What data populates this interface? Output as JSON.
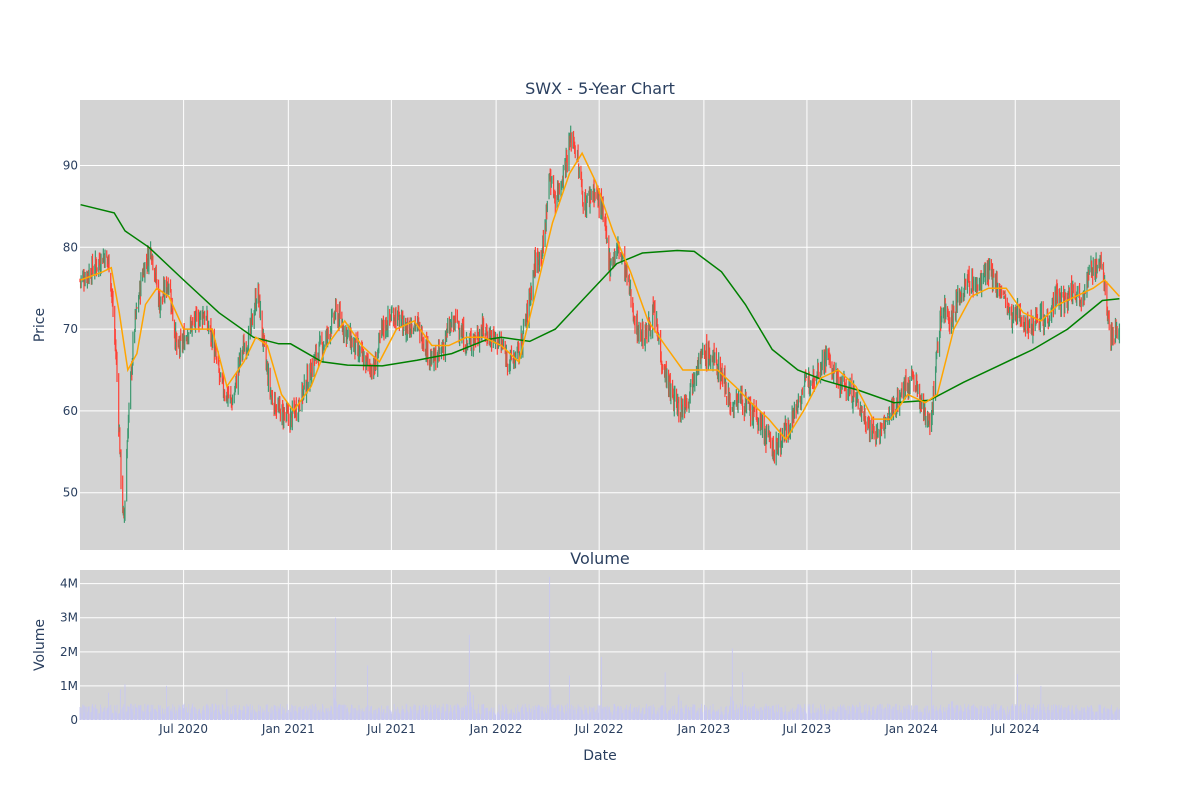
{
  "chart_data": [
    {
      "type": "candlestick",
      "title": "SWX - 5-Year Chart",
      "ylabel": "Price",
      "xlabel": "",
      "ylim": [
        43,
        98
      ],
      "x_range": [
        "2020-01-01",
        "2025-01-01"
      ],
      "yticks": [
        50,
        60,
        70,
        80,
        90
      ],
      "xticks": [
        {
          "date": "2020-07-01",
          "label": "Jul 2020"
        },
        {
          "date": "2021-01-01",
          "label": "Jan 2021"
        },
        {
          "date": "2021-07-01",
          "label": "Jul 2021"
        },
        {
          "date": "2022-01-01",
          "label": "Jan 2022"
        },
        {
          "date": "2022-07-01",
          "label": "Jul 2022"
        },
        {
          "date": "2023-01-01",
          "label": "Jan 2023"
        },
        {
          "date": "2023-07-01",
          "label": "Jul 2023"
        },
        {
          "date": "2024-01-01",
          "label": "Jan 2024"
        },
        {
          "date": "2024-07-01",
          "label": "Jul 2024"
        }
      ],
      "grid": true,
      "background": "#d3d3d3",
      "up_color": "#3d9970",
      "down_color": "#ff4136",
      "close_path": [
        [
          "2020-01-02",
          76
        ],
        [
          "2020-01-25",
          77.5
        ],
        [
          "2020-02-12",
          79
        ],
        [
          "2020-02-22",
          78
        ],
        [
          "2020-03-05",
          66
        ],
        [
          "2020-03-13",
          52
        ],
        [
          "2020-03-18",
          46
        ],
        [
          "2020-03-25",
          58
        ],
        [
          "2020-04-05",
          70
        ],
        [
          "2020-04-20",
          77
        ],
        [
          "2020-05-05",
          80
        ],
        [
          "2020-05-20",
          73
        ],
        [
          "2020-06-05",
          76
        ],
        [
          "2020-06-20",
          67
        ],
        [
          "2020-07-10",
          70
        ],
        [
          "2020-08-05",
          72
        ],
        [
          "2020-08-20",
          69
        ],
        [
          "2020-09-05",
          63
        ],
        [
          "2020-09-25",
          61
        ],
        [
          "2020-10-10",
          67
        ],
        [
          "2020-10-25",
          69
        ],
        [
          "2020-11-08",
          75
        ],
        [
          "2020-11-20",
          67
        ],
        [
          "2020-12-01",
          62
        ],
        [
          "2020-12-15",
          60
        ],
        [
          "2021-01-05",
          59
        ],
        [
          "2021-01-20",
          61
        ],
        [
          "2021-02-05",
          64
        ],
        [
          "2021-02-20",
          67
        ],
        [
          "2021-03-10",
          69
        ],
        [
          "2021-03-25",
          72
        ],
        [
          "2021-04-10",
          70
        ],
        [
          "2021-04-25",
          68
        ],
        [
          "2021-05-15",
          66
        ],
        [
          "2021-06-01",
          65
        ],
        [
          "2021-06-15",
          70
        ],
        [
          "2021-07-05",
          72
        ],
        [
          "2021-07-25",
          70
        ],
        [
          "2021-08-10",
          71
        ],
        [
          "2021-08-25",
          69
        ],
        [
          "2021-09-10",
          66
        ],
        [
          "2021-09-25",
          67
        ],
        [
          "2021-10-10",
          70
        ],
        [
          "2021-10-25",
          71
        ],
        [
          "2021-11-10",
          68
        ],
        [
          "2021-11-25",
          69
        ],
        [
          "2021-12-10",
          70
        ],
        [
          "2021-12-25",
          69
        ],
        [
          "2022-01-10",
          68
        ],
        [
          "2022-01-25",
          66
        ],
        [
          "2022-02-10",
          67
        ],
        [
          "2022-02-25",
          72
        ],
        [
          "2022-03-10",
          78
        ],
        [
          "2022-03-25",
          80
        ],
        [
          "2022-04-05",
          89
        ],
        [
          "2022-04-15",
          86
        ],
        [
          "2022-04-25",
          88
        ],
        [
          "2022-05-05",
          91
        ],
        [
          "2022-05-15",
          94
        ],
        [
          "2022-05-25",
          90
        ],
        [
          "2022-06-05",
          85
        ],
        [
          "2022-06-20",
          87
        ],
        [
          "2022-07-05",
          85
        ],
        [
          "2022-07-20",
          78
        ],
        [
          "2022-08-05",
          80
        ],
        [
          "2022-08-20",
          76
        ],
        [
          "2022-09-05",
          70
        ],
        [
          "2022-09-20",
          69
        ],
        [
          "2022-10-05",
          72
        ],
        [
          "2022-10-20",
          66
        ],
        [
          "2022-11-05",
          62
        ],
        [
          "2022-11-20",
          60
        ],
        [
          "2022-12-05",
          62
        ],
        [
          "2022-12-20",
          66
        ],
        [
          "2023-01-05",
          67
        ],
        [
          "2023-01-20",
          66
        ],
        [
          "2023-02-05",
          64
        ],
        [
          "2023-02-20",
          60
        ],
        [
          "2023-03-05",
          62
        ],
        [
          "2023-03-20",
          60
        ],
        [
          "2023-04-05",
          59
        ],
        [
          "2023-04-20",
          57
        ],
        [
          "2023-05-05",
          55
        ],
        [
          "2023-05-20",
          57
        ],
        [
          "2023-06-05",
          59
        ],
        [
          "2023-06-20",
          62
        ],
        [
          "2023-07-05",
          64
        ],
        [
          "2023-07-20",
          65
        ],
        [
          "2023-08-05",
          67
        ],
        [
          "2023-08-20",
          64
        ],
        [
          "2023-09-05",
          63
        ],
        [
          "2023-09-20",
          62
        ],
        [
          "2023-10-05",
          60
        ],
        [
          "2023-10-20",
          58
        ],
        [
          "2023-11-05",
          57
        ],
        [
          "2023-11-20",
          59
        ],
        [
          "2023-12-05",
          61
        ],
        [
          "2023-12-20",
          63
        ],
        [
          "2024-01-05",
          64
        ],
        [
          "2024-01-20",
          60
        ],
        [
          "2024-02-05",
          59
        ],
        [
          "2024-02-15",
          68
        ],
        [
          "2024-02-25",
          73
        ],
        [
          "2024-03-10",
          71
        ],
        [
          "2024-03-25",
          74
        ],
        [
          "2024-04-10",
          76
        ],
        [
          "2024-04-25",
          75
        ],
        [
          "2024-05-10",
          77
        ],
        [
          "2024-05-25",
          76
        ],
        [
          "2024-06-10",
          74
        ],
        [
          "2024-06-25",
          71
        ],
        [
          "2024-07-10",
          72
        ],
        [
          "2024-07-25",
          70
        ],
        [
          "2024-08-10",
          72
        ],
        [
          "2024-08-25",
          71
        ],
        [
          "2024-09-10",
          74
        ],
        [
          "2024-09-25",
          73
        ],
        [
          "2024-10-10",
          75
        ],
        [
          "2024-10-25",
          74
        ],
        [
          "2024-11-10",
          77
        ],
        [
          "2024-11-25",
          78
        ],
        [
          "2024-12-05",
          76
        ],
        [
          "2024-12-15",
          69
        ],
        [
          "2024-12-31",
          70
        ]
      ],
      "sma_short": {
        "color": "#ffa500",
        "points": [
          [
            "2020-01-02",
            76
          ],
          [
            "2020-02-10",
            77
          ],
          [
            "2020-02-25",
            77.5
          ],
          [
            "2020-03-10",
            72
          ],
          [
            "2020-03-25",
            65
          ],
          [
            "2020-04-10",
            67
          ],
          [
            "2020-04-25",
            73
          ],
          [
            "2020-05-15",
            75
          ],
          [
            "2020-06-05",
            74
          ],
          [
            "2020-07-01",
            70
          ],
          [
            "2020-08-01",
            70
          ],
          [
            "2020-08-20",
            70
          ],
          [
            "2020-09-15",
            63
          ],
          [
            "2020-10-15",
            66
          ],
          [
            "2020-11-05",
            69
          ],
          [
            "2020-11-25",
            68
          ],
          [
            "2020-12-20",
            62
          ],
          [
            "2021-01-10",
            60
          ],
          [
            "2021-02-10",
            63
          ],
          [
            "2021-03-10",
            68
          ],
          [
            "2021-04-10",
            71
          ],
          [
            "2021-05-10",
            68
          ],
          [
            "2021-06-10",
            66
          ],
          [
            "2021-07-10",
            70
          ],
          [
            "2021-08-10",
            71
          ],
          [
            "2021-09-10",
            68
          ],
          [
            "2021-10-10",
            68
          ],
          [
            "2021-11-10",
            69
          ],
          [
            "2021-12-10",
            69
          ],
          [
            "2022-01-10",
            68
          ],
          [
            "2022-02-10",
            66
          ],
          [
            "2022-03-10",
            74
          ],
          [
            "2022-04-10",
            83
          ],
          [
            "2022-05-10",
            89
          ],
          [
            "2022-06-01",
            91.5
          ],
          [
            "2022-06-25",
            88
          ],
          [
            "2022-07-25",
            82
          ],
          [
            "2022-08-25",
            77
          ],
          [
            "2022-09-25",
            71
          ],
          [
            "2022-10-25",
            68
          ],
          [
            "2022-11-25",
            65
          ],
          [
            "2022-12-25",
            65
          ],
          [
            "2023-01-25",
            65
          ],
          [
            "2023-02-25",
            63
          ],
          [
            "2023-03-25",
            61
          ],
          [
            "2023-04-25",
            59
          ],
          [
            "2023-05-25",
            56.5
          ],
          [
            "2023-06-25",
            60
          ],
          [
            "2023-07-25",
            64
          ],
          [
            "2023-08-25",
            65
          ],
          [
            "2023-09-25",
            63
          ],
          [
            "2023-10-25",
            59
          ],
          [
            "2023-11-25",
            59
          ],
          [
            "2023-12-25",
            62
          ],
          [
            "2024-01-25",
            61
          ],
          [
            "2024-02-15",
            62
          ],
          [
            "2024-03-15",
            70
          ],
          [
            "2024-04-15",
            74
          ],
          [
            "2024-05-15",
            75
          ],
          [
            "2024-06-15",
            75
          ],
          [
            "2024-07-15",
            72
          ],
          [
            "2024-08-15",
            71
          ],
          [
            "2024-09-15",
            73
          ],
          [
            "2024-10-15",
            74
          ],
          [
            "2024-11-15",
            75
          ],
          [
            "2024-12-05",
            76
          ],
          [
            "2024-12-31",
            74
          ]
        ]
      },
      "sma_long": {
        "color": "#008000",
        "points": [
          [
            "2020-01-02",
            85.2
          ],
          [
            "2020-03-01",
            84.2
          ],
          [
            "2020-03-20",
            82
          ],
          [
            "2020-05-01",
            80
          ],
          [
            "2020-07-01",
            76
          ],
          [
            "2020-09-01",
            72
          ],
          [
            "2020-11-01",
            69
          ],
          [
            "2020-12-15",
            68.2
          ],
          [
            "2021-01-05",
            68.2
          ],
          [
            "2021-03-01",
            66
          ],
          [
            "2021-04-15",
            65.6
          ],
          [
            "2021-06-15",
            65.5
          ],
          [
            "2021-08-15",
            66.2
          ],
          [
            "2021-10-15",
            67
          ],
          [
            "2021-12-15",
            68.7
          ],
          [
            "2022-01-10",
            69
          ],
          [
            "2022-03-01",
            68.5
          ],
          [
            "2022-04-15",
            70
          ],
          [
            "2022-06-01",
            73.5
          ],
          [
            "2022-08-01",
            78
          ],
          [
            "2022-09-15",
            79.3
          ],
          [
            "2022-11-15",
            79.6
          ],
          [
            "2022-12-15",
            79.5
          ],
          [
            "2023-02-01",
            77
          ],
          [
            "2023-03-15",
            73
          ],
          [
            "2023-05-01",
            67.5
          ],
          [
            "2023-06-15",
            65
          ],
          [
            "2023-08-01",
            63.7
          ],
          [
            "2023-10-01",
            62.5
          ],
          [
            "2023-12-01",
            61
          ],
          [
            "2024-02-01",
            61.3
          ],
          [
            "2024-04-01",
            63.5
          ],
          [
            "2024-06-01",
            65.5
          ],
          [
            "2024-08-01",
            67.5
          ],
          [
            "2024-10-01",
            70
          ],
          [
            "2024-12-01",
            73.5
          ],
          [
            "2024-12-31",
            73.7
          ]
        ]
      }
    },
    {
      "type": "bar",
      "title": "Volume",
      "xlabel": "Date",
      "ylabel": "Volume",
      "ylim": [
        0,
        4400000
      ],
      "yticks": [
        {
          "value": 0,
          "label": "0"
        },
        {
          "value": 1000000,
          "label": "1M"
        },
        {
          "value": 2000000,
          "label": "2M"
        },
        {
          "value": 3000000,
          "label": "3M"
        },
        {
          "value": 4000000,
          "label": "4M"
        }
      ],
      "bar_color": "#c8c8f0",
      "baseline": 300000,
      "spikes": [
        [
          "2020-02-20",
          800000
        ],
        [
          "2020-03-12",
          900000
        ],
        [
          "2020-03-20",
          1050000
        ],
        [
          "2020-05-10",
          1050000
        ],
        [
          "2020-06-01",
          1000000
        ],
        [
          "2020-09-15",
          900000
        ],
        [
          "2020-12-20",
          1050000
        ],
        [
          "2021-03-20",
          1800000
        ],
        [
          "2021-03-25",
          3000000
        ],
        [
          "2021-05-20",
          1600000
        ],
        [
          "2021-11-15",
          2500000
        ],
        [
          "2021-11-20",
          2600000
        ],
        [
          "2022-04-05",
          4200000
        ],
        [
          "2022-04-10",
          2400000
        ],
        [
          "2022-05-10",
          1300000
        ],
        [
          "2022-07-05",
          1850000
        ],
        [
          "2022-08-20",
          1500000
        ],
        [
          "2022-09-25",
          1400000
        ],
        [
          "2022-10-25",
          1400000
        ],
        [
          "2022-11-20",
          2300000
        ],
        [
          "2023-02-20",
          2100000
        ],
        [
          "2023-03-10",
          1400000
        ],
        [
          "2023-06-25",
          1000000
        ],
        [
          "2023-10-01",
          1900000
        ],
        [
          "2024-02-05",
          2050000
        ],
        [
          "2024-03-10",
          1600000
        ],
        [
          "2024-07-05",
          1350000
        ],
        [
          "2024-08-15",
          1000000
        ]
      ]
    }
  ]
}
